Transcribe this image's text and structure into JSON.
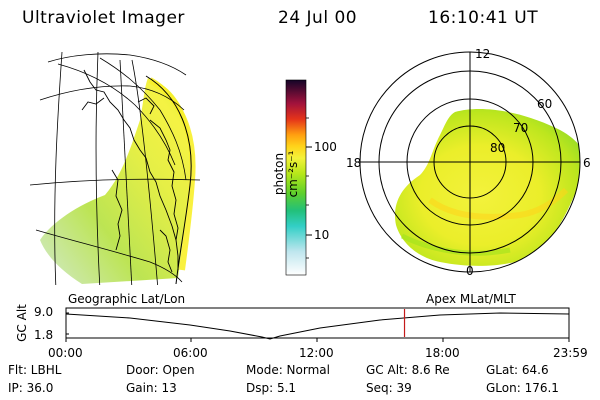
{
  "header": {
    "instrument": "Ultraviolet Imager",
    "date": "24 Jul 00",
    "time": "16:10:41 UT"
  },
  "colorbar": {
    "unit_label": "photon cm⁻²s⁻¹",
    "ticks": [
      "100",
      "10"
    ]
  },
  "polar_plot": {
    "mlt_labels": [
      "12",
      "18",
      "6",
      "0"
    ],
    "mlat_labels": [
      "60",
      "70",
      "80"
    ]
  },
  "captions": {
    "left": "Geographic Lat/Lon",
    "right": "Apex MLat/MLT"
  },
  "altitude_plot": {
    "ylabel": "GC Alt",
    "yticks": [
      "9.0",
      "1.8"
    ],
    "xticks": [
      "00:00",
      "06:00",
      "12:00",
      "18:00",
      "23:59"
    ],
    "current_time_fraction": 0.673
  },
  "info": {
    "row1": {
      "flt": "Flt: LBHL",
      "door": "Door: Open",
      "mode": "Mode: Normal",
      "gc_alt": "GC Alt: 8.6 Re",
      "glat": "GLat:  64.6"
    },
    "row2": {
      "ip": "IP: 36.0",
      "gain": "Gain: 13",
      "dsp": "Dsp:    5.1",
      "seq": "Seq: 39",
      "glon": "GLon: 176.1"
    }
  },
  "colors": {
    "intensity_scale": [
      "#ffffff",
      "#cfe8ee",
      "#7fd6d6",
      "#2fd0c8",
      "#22c37a",
      "#5ccf2f",
      "#9ee21c",
      "#d2ee16",
      "#f4f234",
      "#ffd31a",
      "#ff9e10",
      "#e4331a",
      "#a1123c",
      "#5a0c4a",
      "#1a0530"
    ],
    "time_marker": "#c41a1a"
  }
}
